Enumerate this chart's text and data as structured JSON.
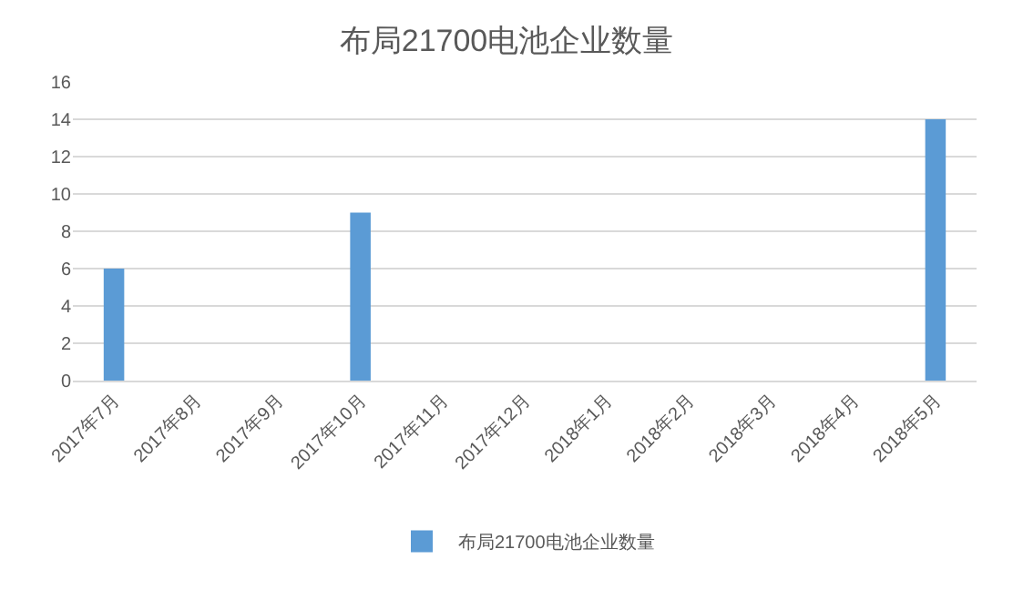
{
  "chart_data": {
    "type": "bar",
    "title": "布局21700电池企业数量",
    "categories": [
      "2017年7月",
      "2017年8月",
      "2017年9月",
      "2017年10月",
      "2017年11月",
      "2017年12月",
      "2018年1月",
      "2018年2月",
      "2018年3月",
      "2018年4月",
      "2018年5月"
    ],
    "series": [
      {
        "name": "布局21700电池企业数量",
        "color": "#5b9bd5",
        "values": [
          6,
          0,
          0,
          9,
          0,
          0,
          0,
          0,
          0,
          0,
          14
        ]
      }
    ],
    "ylim": [
      0,
      16
    ],
    "yticks": [
      0,
      2,
      4,
      6,
      8,
      10,
      12,
      14,
      16
    ],
    "grid": "y",
    "legend": "bottom"
  }
}
